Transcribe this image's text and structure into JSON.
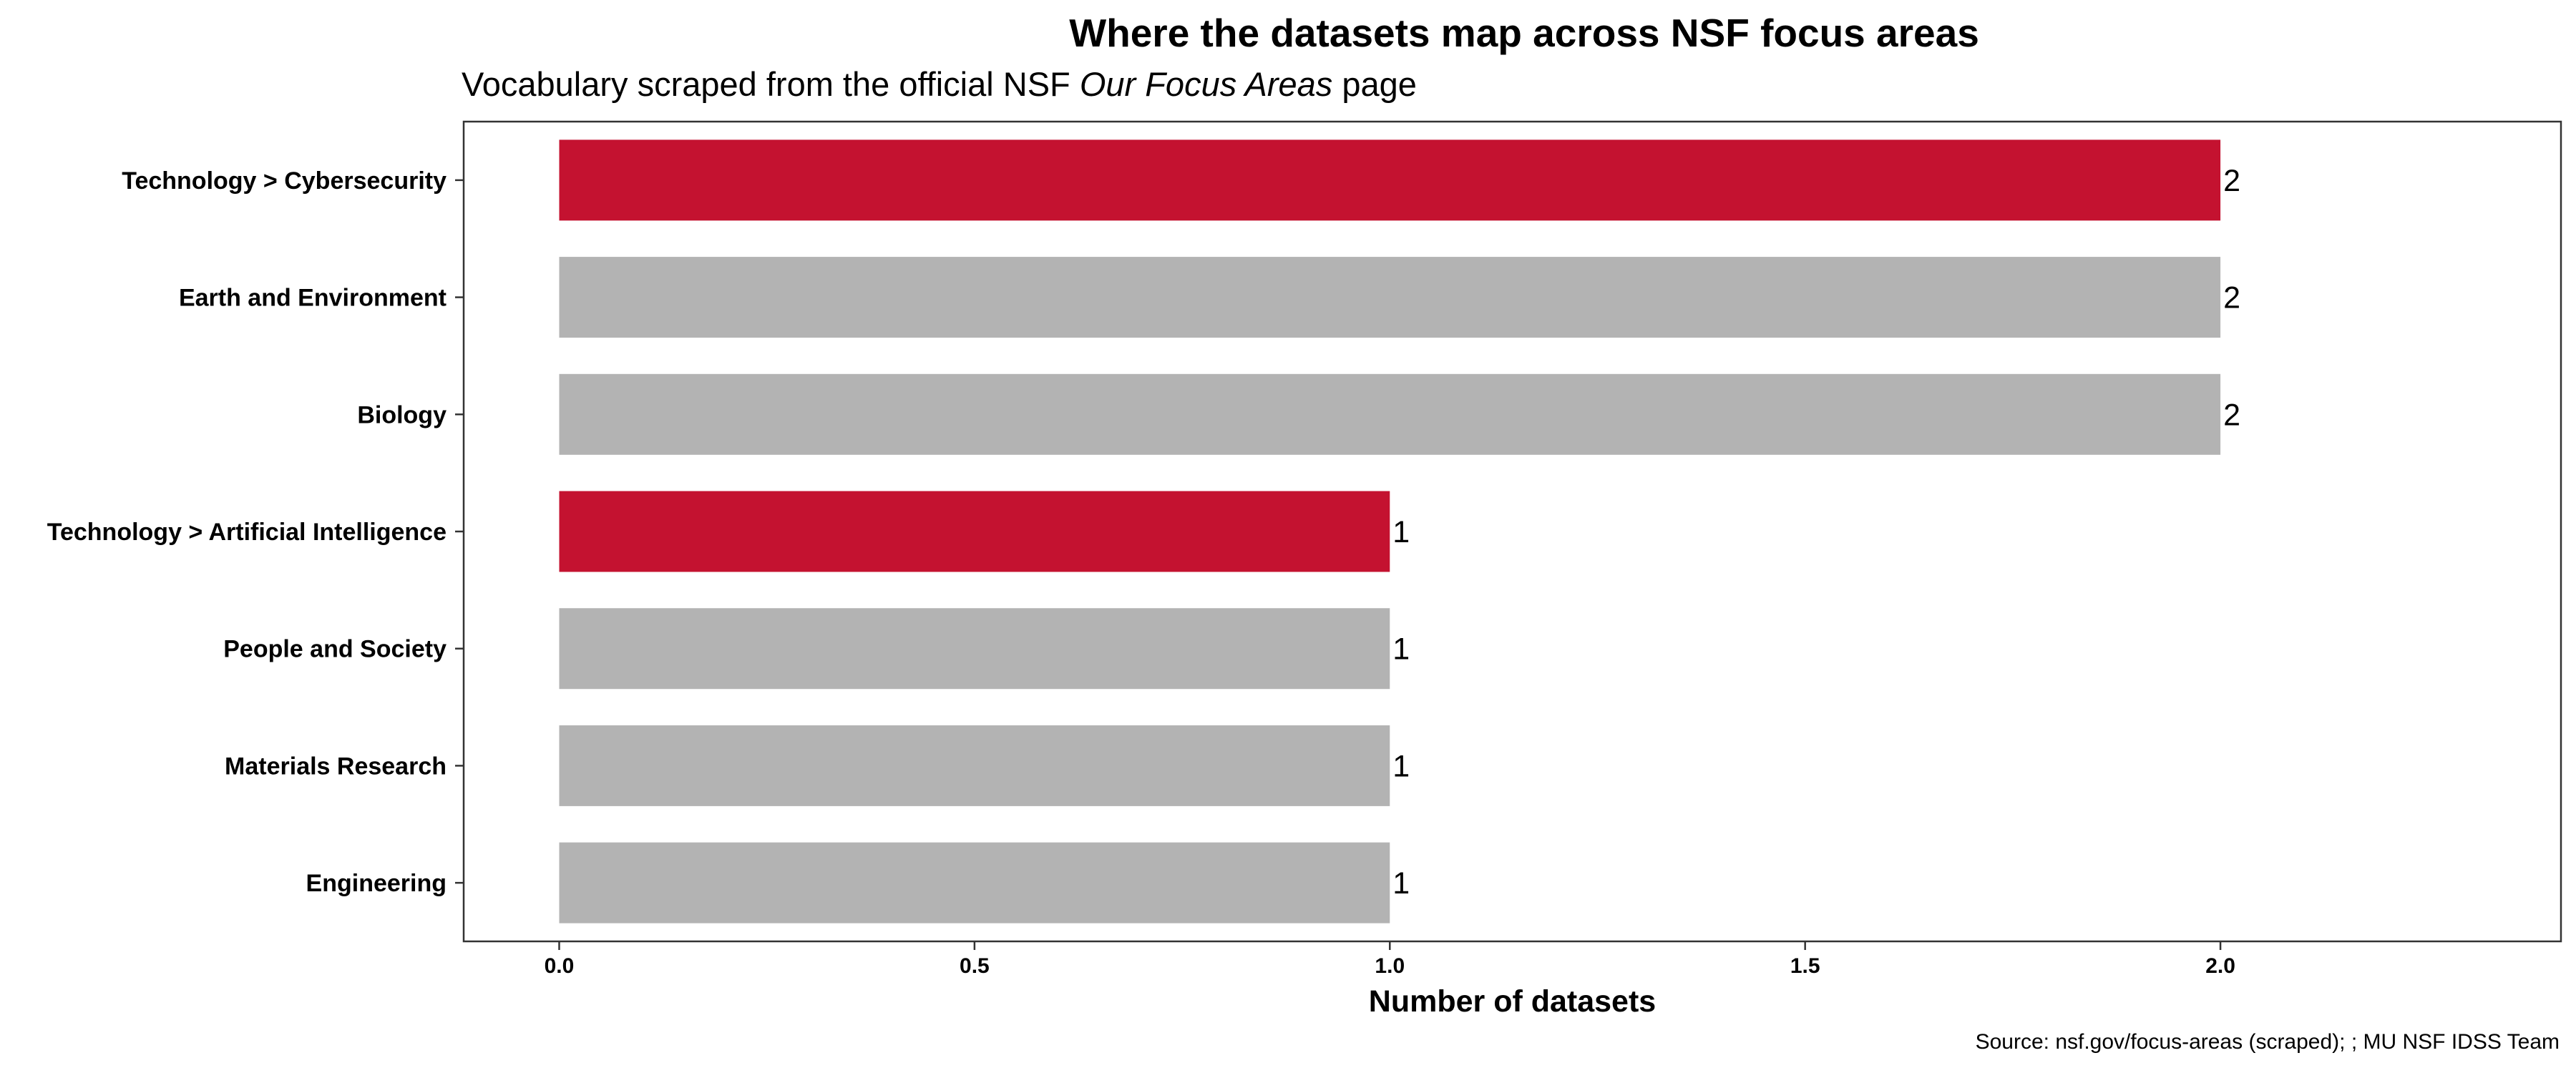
{
  "chart_data": {
    "type": "bar",
    "orientation": "horizontal",
    "title": "Where the datasets map across NSF focus areas",
    "subtitle_prefix": "Vocabulary scraped from the official NSF ",
    "subtitle_emphasis": "Our Focus Areas",
    "subtitle_suffix": " page",
    "xlabel": "Number of datasets",
    "ylabel": "",
    "caption": "Source: nsf.gov/focus-areas (scraped); ; MU NSF IDSS Team",
    "xlim": [
      -0.115,
      2.41
    ],
    "xticks": [
      0.0,
      0.5,
      1.0,
      1.5,
      2.0
    ],
    "xtick_labels": [
      "0.0",
      "0.5",
      "1.0",
      "1.5",
      "2.0"
    ],
    "grid": false,
    "legend": "none",
    "categories": [
      "Technology > Cybersecurity",
      "Earth and Environment",
      "Biology",
      "Technology > Artificial Intelligence",
      "People and Society",
      "Materials Research",
      "Engineering"
    ],
    "values": [
      2,
      2,
      2,
      1,
      1,
      1,
      1
    ],
    "highlighted": [
      true,
      false,
      false,
      true,
      false,
      false,
      false
    ],
    "colors": {
      "highlight": "#C41230",
      "default": "#B3B3B3",
      "axis": "#333333"
    }
  }
}
